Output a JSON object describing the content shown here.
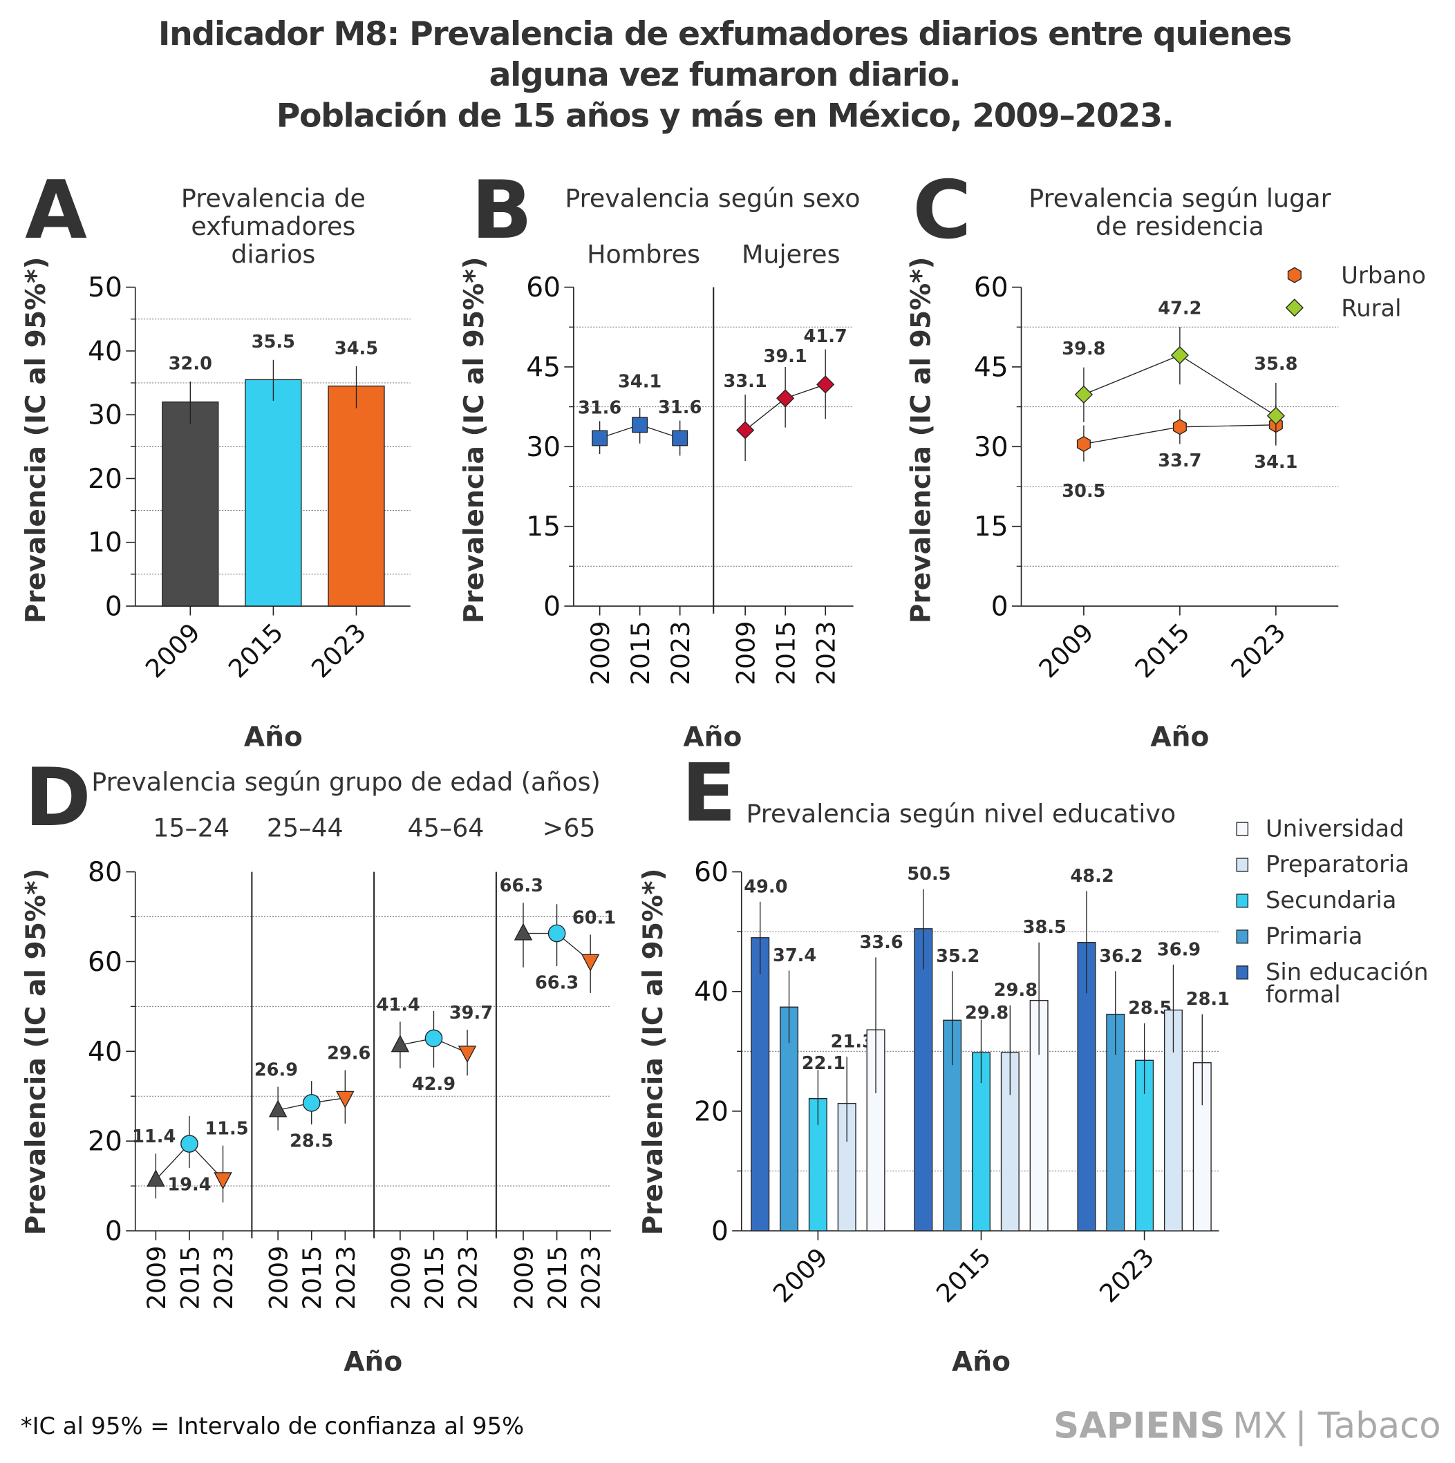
{
  "title": {
    "lines": [
      "Indicador M8: Prevalencia de exfumadores diarios entre quienes",
      "alguna vez fumaron diario.",
      "Población de 15 años y más en México, 2009–2023."
    ]
  },
  "footer": {
    "note": "*IC al 95% = Intervalo de confianza al 95%",
    "logo_brand": "SAPIENS",
    "logo_mx": "MX",
    "logo_topic": "| Tabaco"
  },
  "colors": {
    "dark_gray": "#4b4b4b",
    "cyan": "#36cff0",
    "orange": "#ef6a21",
    "blue": "#2f6bbf",
    "crimson": "#c8102e",
    "green": "#9ccc2e"
  },
  "chart_data": [
    {
      "panel": "A",
      "type": "bar",
      "title_lines": [
        "Prevalencia de",
        "exfumadores",
        "diarios"
      ],
      "xlabel": "Año",
      "ylabel": "Prevalencia (IC al 95%*)",
      "ylim": [
        0,
        50
      ],
      "yticks": [
        "0",
        "10",
        "20",
        "30",
        "40",
        "50"
      ],
      "grid": "dotted horizontal at 5, 15, 25, 35, 45",
      "categories": [
        "2009",
        "2015",
        "2023"
      ],
      "values": [
        32.0,
        35.5,
        34.5
      ],
      "labels": [
        "32.0",
        "35.5",
        "34.5"
      ],
      "ci": [
        [
          28.5,
          35.2
        ],
        [
          32.2,
          38.6
        ],
        [
          31.0,
          37.6
        ]
      ],
      "colors": [
        "#4b4b4b",
        "#36cff0",
        "#ef6a21"
      ]
    },
    {
      "panel": "B",
      "type": "scatter",
      "title_lines": [
        "Prevalencia según sexo"
      ],
      "xlabel": "Año",
      "ylabel": "Prevalencia (IC al 95%*)",
      "ylim": [
        0,
        60
      ],
      "yticks": [
        "0",
        "15",
        "30",
        "45",
        "60"
      ],
      "grid": "dotted horizontal at 7.5, 22.5, 37.5, 52.5",
      "groups": [
        {
          "name": "Hombres",
          "categories": [
            "2009",
            "2015",
            "2023"
          ],
          "values": [
            31.6,
            34.1,
            31.6
          ],
          "labels": [
            "31.6",
            "34.1",
            "31.6"
          ],
          "ci": [
            [
              28.6,
              34.8
            ],
            [
              30.6,
              37.3
            ],
            [
              28.3,
              34.9
            ]
          ],
          "marker": "square",
          "color": "#2f6bbf"
        },
        {
          "name": "Mujeres",
          "categories": [
            "2009",
            "2015",
            "2023"
          ],
          "values": [
            33.1,
            39.1,
            41.7
          ],
          "labels": [
            "33.1",
            "39.1",
            "41.7"
          ],
          "ci": [
            [
              27.3,
              39.8
            ],
            [
              33.6,
              45.0
            ],
            [
              35.2,
              48.3
            ]
          ],
          "marker": "diamond",
          "color": "#c8102e"
        }
      ]
    },
    {
      "panel": "C",
      "type": "line",
      "title_lines": [
        "Prevalencia según lugar",
        "de residencia"
      ],
      "xlabel": "Año",
      "ylabel": "Prevalencia (IC al 95%*)",
      "ylim": [
        0,
        60
      ],
      "yticks": [
        "0",
        "15",
        "30",
        "45",
        "60"
      ],
      "grid": "dotted horizontal at 7.5, 22.5, 37.5, 52.5",
      "legend": "top-right",
      "categories": [
        "2009",
        "2015",
        "2023"
      ],
      "series": [
        {
          "name": "Urbano",
          "values": [
            30.5,
            33.7,
            34.1
          ],
          "labels": [
            "30.5",
            "33.7",
            "34.1"
          ],
          "ci": [
            [
              27.2,
              34.0
            ],
            [
              30.5,
              37.0
            ],
            [
              30.2,
              38.0
            ]
          ],
          "marker": "hexagon",
          "color": "#ef6a21"
        },
        {
          "name": "Rural",
          "values": [
            39.8,
            47.2,
            35.8
          ],
          "labels": [
            "39.8",
            "47.2",
            "35.8"
          ],
          "ci": [
            [
              34.6,
              44.9
            ],
            [
              41.7,
              52.5
            ],
            [
              30.6,
              42.0
            ]
          ],
          "marker": "diamond",
          "color": "#9ccc2e"
        }
      ]
    },
    {
      "panel": "D",
      "type": "line",
      "title_lines": [
        "Prevalencia según grupo de edad (años)"
      ],
      "xlabel": "Año",
      "ylabel": "Prevalencia (IC al 95%*)",
      "ylim": [
        0,
        80
      ],
      "yticks": [
        "0",
        "20",
        "40",
        "60",
        "80"
      ],
      "grid": "dotted horizontal at 10, 30, 50, 70",
      "categories": [
        "2009",
        "2015",
        "2023"
      ],
      "markers": [
        "triangle-up",
        "circle",
        "triangle-down"
      ],
      "marker_colors": [
        "#4b4b4b",
        "#36cff0",
        "#ef6a21"
      ],
      "groups": [
        {
          "name": "15–24",
          "values": [
            11.4,
            19.4,
            11.5
          ],
          "labels": [
            "11.4",
            "19.4",
            "11.5"
          ],
          "ci": [
            [
              7.2,
              17.2
            ],
            [
              14.0,
              25.6
            ],
            [
              6.3,
              19.0
            ]
          ]
        },
        {
          "name": "25–44",
          "values": [
            26.9,
            28.5,
            29.6
          ],
          "labels": [
            "26.9",
            "28.5",
            "29.6"
          ],
          "ci": [
            [
              22.4,
              32.1
            ],
            [
              23.7,
              33.4
            ],
            [
              23.9,
              35.8
            ]
          ]
        },
        {
          "name": "45–64",
          "values": [
            41.4,
            42.9,
            39.7
          ],
          "labels": [
            "41.4",
            "42.9",
            "39.7"
          ],
          "ci": [
            [
              36.2,
              46.6
            ],
            [
              36.4,
              49.0
            ],
            [
              34.6,
              44.8
            ]
          ]
        },
        {
          "name": ">65",
          "values": [
            66.3,
            66.3,
            60.1
          ],
          "labels": [
            "66.3",
            "66.3",
            "60.1"
          ],
          "ci": [
            [
              58.7,
              73.1
            ],
            [
              59.0,
              72.8
            ],
            [
              53.0,
              66.0
            ]
          ]
        }
      ]
    },
    {
      "panel": "E",
      "type": "bar",
      "title_lines": [
        "Prevalencia según nivel educativo"
      ],
      "xlabel": "Año",
      "ylabel": "Prevalencia (IC al 95%*)",
      "ylim": [
        0,
        60
      ],
      "yticks": [
        "0",
        "20",
        "40",
        "60"
      ],
      "grid": "dotted horizontal at 10, 30, 50",
      "legend": "right",
      "categories": [
        "2009",
        "2015",
        "2023"
      ],
      "series": [
        {
          "name": "Sin educación formal",
          "name_lines": [
            "Sin educación",
            "formal"
          ],
          "color": "#346ec0",
          "values": [
            49.0,
            50.5,
            48.2
          ],
          "labels": [
            "49.0",
            "50.5",
            "48.2"
          ],
          "ci": [
            [
              42.9,
              55.0
            ],
            [
              43.7,
              57.1
            ],
            [
              39.7,
              56.8
            ]
          ]
        },
        {
          "name": "Primaria",
          "name_lines": [
            "Primaria"
          ],
          "color": "#42a0d4",
          "values": [
            37.4,
            35.2,
            36.2
          ],
          "labels": [
            "37.4",
            "35.2",
            "36.2"
          ],
          "ci": [
            [
              31.4,
              43.5
            ],
            [
              27.7,
              43.4
            ],
            [
              29.4,
              43.4
            ]
          ]
        },
        {
          "name": "Secundaria",
          "name_lines": [
            "Secundaria"
          ],
          "color": "#36cff0",
          "values": [
            22.1,
            29.8,
            28.5
          ],
          "labels": [
            "22.1",
            "29.8",
            "28.5"
          ],
          "ci": [
            [
              17.7,
              26.9
            ],
            [
              24.7,
              35.3
            ],
            [
              22.9,
              34.7
            ]
          ]
        },
        {
          "name": "Preparatoria",
          "name_lines": [
            "Preparatoria"
          ],
          "color": "#d6e6f5",
          "values": [
            21.3,
            29.8,
            36.9
          ],
          "labels": [
            "21.3",
            "29.8",
            "36.9"
          ],
          "ci": [
            [
              14.9,
              29.1
            ],
            [
              22.7,
              37.7
            ],
            [
              29.8,
              44.5
            ]
          ]
        },
        {
          "name": "Universidad",
          "name_lines": [
            "Universidad"
          ],
          "color": "#f5f9fe",
          "values": [
            33.6,
            38.5,
            28.1
          ],
          "labels": [
            "33.6",
            "38.5",
            "28.1"
          ],
          "ci": [
            [
              23.0,
              45.7
            ],
            [
              29.4,
              48.2
            ],
            [
              21.0,
              36.2
            ]
          ]
        }
      ]
    }
  ]
}
